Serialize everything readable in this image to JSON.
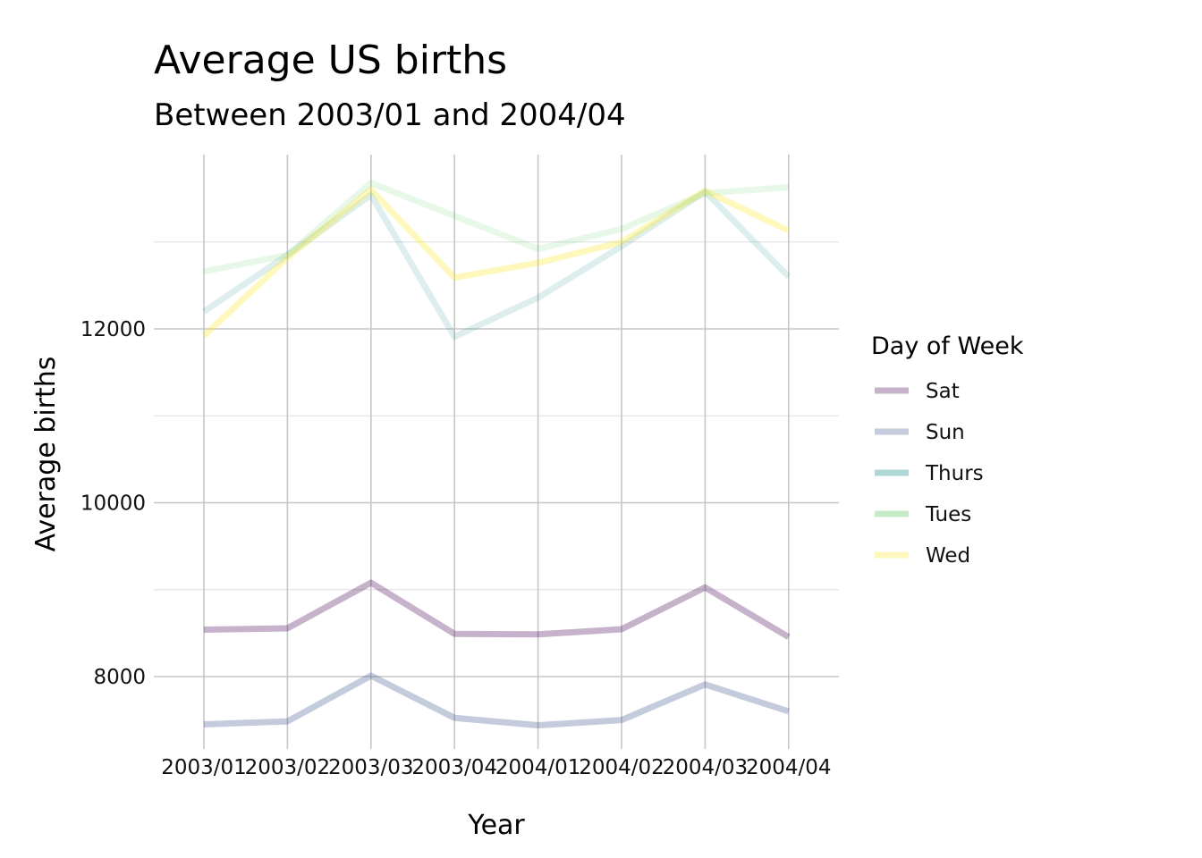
{
  "chart_data": {
    "type": "line",
    "title": "Average US births",
    "subtitle": "Between 2003/01 and 2004/04",
    "xlabel": "Year",
    "ylabel": "Average births",
    "x": [
      "2003/01",
      "2003/02",
      "2003/03",
      "2003/04",
      "2004/01",
      "2004/02",
      "2004/03",
      "2004/04"
    ],
    "ylim": [
      7150,
      13970
    ],
    "yticks": [
      8000,
      10000,
      12000
    ],
    "yticks_minor": [
      9000,
      11000,
      13000
    ],
    "grid": true,
    "legend": {
      "title": "Day of Week",
      "position": "right"
    },
    "series": [
      {
        "name": "Sat",
        "color": "#440154",
        "opacity": 0.3,
        "values": [
          8540,
          8555,
          9080,
          8490,
          8485,
          8545,
          9025,
          8455
        ]
      },
      {
        "name": "Sun",
        "color": "#3b528b",
        "opacity": 0.3,
        "values": [
          7450,
          7485,
          8010,
          7525,
          7440,
          7500,
          7910,
          7600
        ]
      },
      {
        "name": "Thurs",
        "color": "#21908c",
        "opacity": 0.15,
        "values": [
          12200,
          12850,
          13540,
          11910,
          12360,
          12950,
          13580,
          12600
        ]
      },
      {
        "name": "Tues",
        "color": "#5ec962",
        "opacity": 0.15,
        "values": [
          12660,
          12850,
          13680,
          13300,
          12920,
          13150,
          13560,
          13630
        ]
      },
      {
        "name": "Wed",
        "color": "#fde725",
        "opacity": 0.3,
        "values": [
          11920,
          12820,
          13600,
          12590,
          12760,
          13000,
          13590,
          13130
        ]
      }
    ]
  }
}
